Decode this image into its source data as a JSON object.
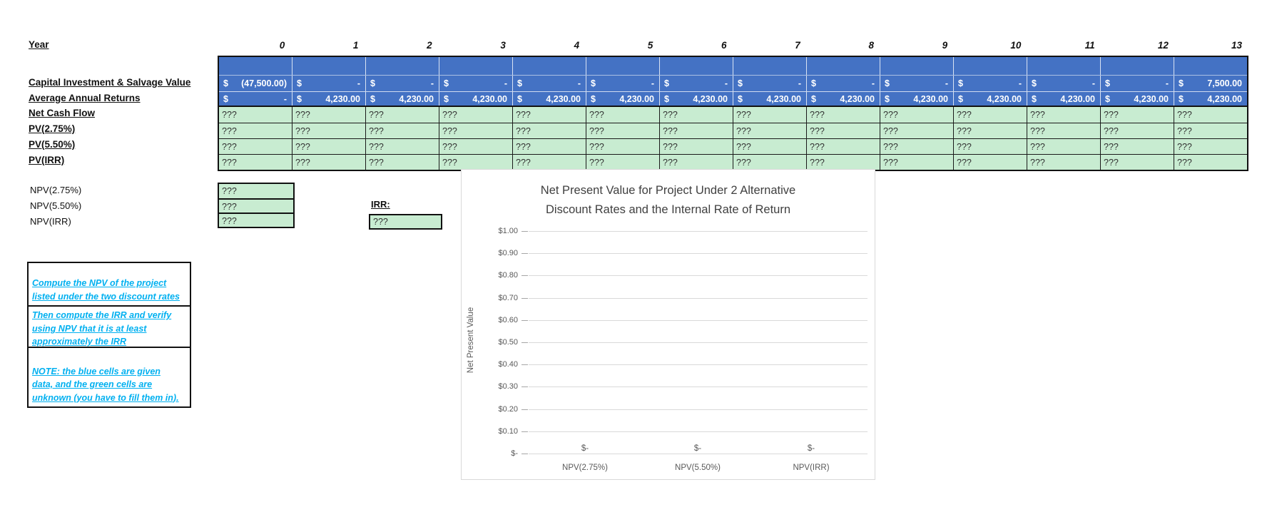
{
  "legend_colors": {
    "given_data_fill": "#4472C4",
    "unknown_fill": "#C8ECD1",
    "instruction_text": "#00B0F0"
  },
  "table": {
    "currency_symbol": "$",
    "year_header": {
      "label": "Year",
      "values": [
        "0",
        "1",
        "2",
        "3",
        "4",
        "5",
        "6",
        "7",
        "8",
        "9",
        "10",
        "11",
        "12",
        "13"
      ]
    },
    "blue_rows": [
      {
        "label": "Capital Investment & Salvage Value",
        "cells": [
          "(47,500.00)",
          "-",
          "-",
          "-",
          "-",
          "-",
          "-",
          "-",
          "-",
          "-",
          "-",
          "-",
          "-",
          "7,500.00"
        ]
      },
      {
        "label": "Average Annual Returns",
        "cells": [
          "-",
          "4,230.00",
          "4,230.00",
          "4,230.00",
          "4,230.00",
          "4,230.00",
          "4,230.00",
          "4,230.00",
          "4,230.00",
          "4,230.00",
          "4,230.00",
          "4,230.00",
          "4,230.00",
          "4,230.00"
        ]
      }
    ],
    "green_rows": [
      {
        "label": "Net Cash Flow",
        "cells": [
          "???",
          "???",
          "???",
          "???",
          "???",
          "???",
          "???",
          "???",
          "???",
          "???",
          "???",
          "???",
          "???",
          "???"
        ]
      },
      {
        "label": "PV(2.75%)",
        "cells": [
          "???",
          "???",
          "???",
          "???",
          "???",
          "???",
          "???",
          "???",
          "???",
          "???",
          "???",
          "???",
          "???",
          "???"
        ]
      },
      {
        "label": "PV(5.50%)",
        "cells": [
          "???",
          "???",
          "???",
          "???",
          "???",
          "???",
          "???",
          "???",
          "???",
          "???",
          "???",
          "???",
          "???",
          "???"
        ]
      },
      {
        "label": "PV(IRR)",
        "cells": [
          "???",
          "???",
          "???",
          "???",
          "???",
          "???",
          "???",
          "???",
          "???",
          "???",
          "???",
          "???",
          "???",
          "???"
        ]
      }
    ]
  },
  "npv_section": {
    "items": [
      {
        "label": "NPV(2.75%)",
        "value": "???"
      },
      {
        "label": "NPV(5.50%)",
        "value": "???"
      },
      {
        "label": "NPV(IRR)",
        "value": "???"
      }
    ],
    "irr_label": "IRR:",
    "irr_value": "???"
  },
  "instructions": {
    "boxes": [
      {
        "lines": [
          "Compute the NPV of the project",
          "listed under the two discount rates"
        ]
      },
      {
        "lines": [
          "Then compute the IRR and verify",
          "using NPV that it is at least",
          "approximately the IRR"
        ]
      },
      {
        "lines": [
          "NOTE: the blue cells are given",
          "data, and the green cells are",
          "unknown (you have to fill them in)."
        ]
      }
    ]
  },
  "chart_data": {
    "type": "bar",
    "title": "Net Present Value for Project Under 2 Alternative Discount Rates and the Internal Rate of Return",
    "title_lines": [
      "Net Present Value for Project Under 2 Alternative",
      "Discount Rates and the Internal Rate of Return"
    ],
    "categories": [
      "NPV(2.75%)",
      "NPV(5.50%)",
      "NPV(IRR)"
    ],
    "values": [
      0,
      0,
      0
    ],
    "data_labels": [
      "$-",
      "$-",
      "$-"
    ],
    "xlabel": "",
    "ylabel": "Net Present Value",
    "ylim": [
      0,
      1
    ],
    "ytick_step": 0.1,
    "ytick_labels": [
      "$1.00",
      "$0.90",
      "$0.80",
      "$0.70",
      "$0.60",
      "$0.50",
      "$0.40",
      "$0.30",
      "$0.20",
      "$0.10",
      "$-"
    ],
    "grid": true,
    "legend": "none"
  }
}
